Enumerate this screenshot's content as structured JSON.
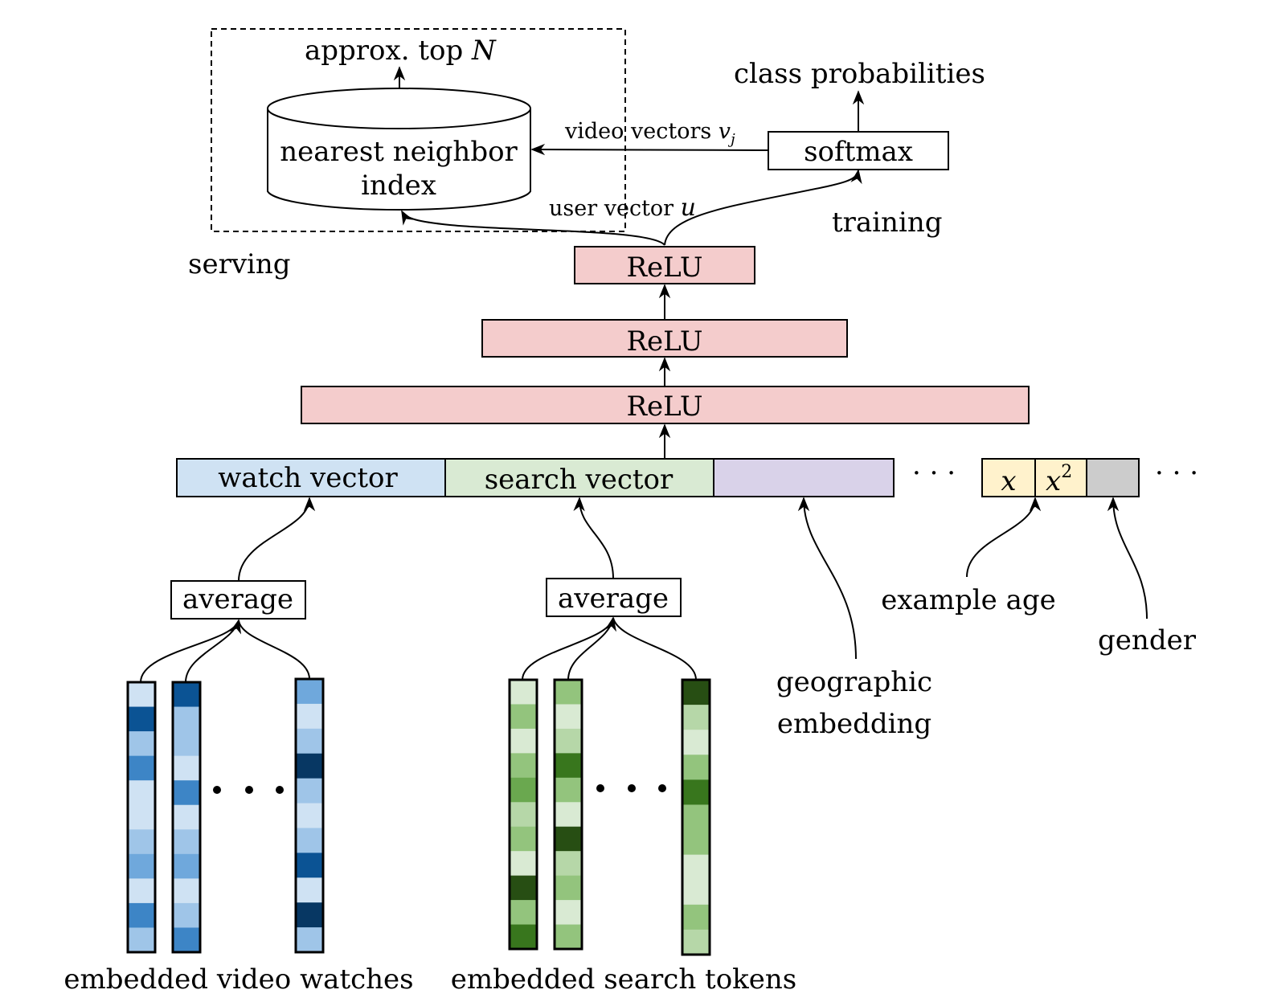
{
  "serving": {
    "output_label": "approx. top ",
    "output_var": "N",
    "index_line1": "nearest neighbor",
    "index_line2": "index",
    "label": "serving"
  },
  "training": {
    "output_label": "class probabilities",
    "softmax_label": "softmax",
    "label": "training"
  },
  "edges": {
    "video_vectors": "video vectors ",
    "video_vectors_var": "v",
    "video_vectors_sub": "j",
    "user_vector": "user vector ",
    "user_vector_var": "u"
  },
  "layers": [
    "ReLU",
    "ReLU",
    "ReLU"
  ],
  "input_vector": {
    "watch": "watch vector",
    "search": "search vector",
    "age_x": "x",
    "age_x2": "x",
    "age_x2_exp": "2",
    "ellipsis": "· · ·"
  },
  "average_label": "average",
  "features": {
    "example_age": "example age",
    "gender": "gender",
    "geo_line1": "geographic",
    "geo_line2": "embedding"
  },
  "captions": {
    "video_watches": "embedded video watches",
    "search_tokens": "embedded search tokens"
  },
  "colors": {
    "relu": "#f4cccc",
    "watch": "#cfe2f3",
    "search": "#d9ead3",
    "geo": "#d9d2e9",
    "age": "#fff2cc",
    "gender": "#cccccc"
  },
  "embeddings": {
    "watch_columns": [
      [
        "#cfe2f3",
        "#0b5394",
        "#9fc5e8",
        "#3d85c6",
        "#cfe2f3",
        "#cfe2f3",
        "#9fc5e8",
        "#6fa8dc",
        "#cfe2f3",
        "#3d85c6",
        "#9fc5e8"
      ],
      [
        "#0b5394",
        "#9fc5e8",
        "#9fc5e8",
        "#cfe2f3",
        "#3d85c6",
        "#cfe2f3",
        "#9fc5e8",
        "#6fa8dc",
        "#cfe2f3",
        "#9fc5e8",
        "#3d85c6"
      ],
      [
        "#6fa8dc",
        "#cfe2f3",
        "#9fc5e8",
        "#073763",
        "#9fc5e8",
        "#cfe2f3",
        "#9fc5e8",
        "#0b5394",
        "#cfe2f3",
        "#073763",
        "#9fc5e8"
      ]
    ],
    "search_columns": [
      [
        "#d9ead3",
        "#93c47d",
        "#d9ead3",
        "#93c47d",
        "#6aa84f",
        "#b6d7a8",
        "#93c47d",
        "#d9ead3",
        "#274e13",
        "#93c47d",
        "#38761d"
      ],
      [
        "#93c47d",
        "#d9ead3",
        "#b6d7a8",
        "#38761d",
        "#93c47d",
        "#d9ead3",
        "#274e13",
        "#b6d7a8",
        "#93c47d",
        "#d9ead3",
        "#93c47d"
      ],
      [
        "#274e13",
        "#b6d7a8",
        "#d9ead3",
        "#93c47d",
        "#38761d",
        "#93c47d",
        "#93c47d",
        "#d9ead3",
        "#d9ead3",
        "#93c47d",
        "#b6d7a8"
      ]
    ]
  }
}
